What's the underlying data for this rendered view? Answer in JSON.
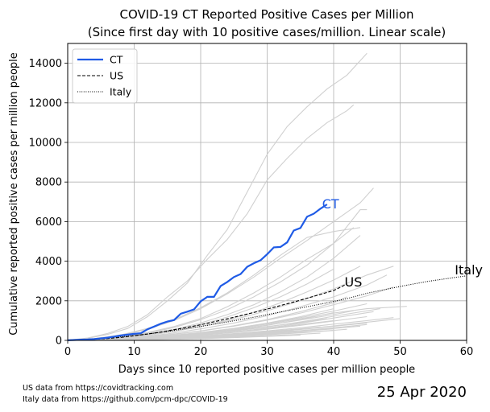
{
  "chart_data": {
    "type": "line",
    "title": "COVID-19 CT Reported Positive Cases per Million",
    "subtitle": "(Since first day with 10 positive cases/million. Linear scale)",
    "xlabel": "Days since 10 reported positive cases per million people",
    "ylabel": "Cumulative reported positive cases per million people",
    "xlim": [
      0,
      60
    ],
    "ylim": [
      0,
      15000
    ],
    "xticks": [
      0,
      10,
      20,
      30,
      40,
      50,
      60
    ],
    "yticks": [
      0,
      2000,
      4000,
      6000,
      8000,
      10000,
      12000,
      14000
    ],
    "grid": true,
    "legend_position": "top-left",
    "series": [
      {
        "name": "CT",
        "color": "#1f5be6",
        "style": "solid-bold",
        "end_label": "CT",
        "x": [
          0,
          1,
          2,
          3,
          4,
          5,
          6,
          7,
          8,
          9,
          10,
          11,
          12,
          13,
          14,
          15,
          16,
          17,
          18,
          19,
          20,
          21,
          22,
          23,
          24,
          25,
          26,
          27,
          28,
          29,
          30,
          31,
          32,
          33,
          34,
          35,
          36,
          37,
          38,
          39
        ],
        "y": [
          10,
          20,
          35,
          50,
          70,
          100,
          140,
          190,
          250,
          290,
          330,
          360,
          560,
          700,
          840,
          950,
          1030,
          1350,
          1450,
          1570,
          1970,
          2200,
          2200,
          2750,
          2950,
          3200,
          3350,
          3720,
          3900,
          4050,
          4350,
          4700,
          4720,
          4950,
          5550,
          5680,
          6250,
          6400,
          6650,
          6870
        ]
      },
      {
        "name": "US",
        "color": "#000000",
        "style": "dashed",
        "end_label": "US",
        "x": [
          0,
          2,
          4,
          6,
          8,
          10,
          12,
          14,
          16,
          18,
          20,
          22,
          24,
          26,
          28,
          30,
          32,
          34,
          36,
          38,
          40,
          42
        ],
        "y": [
          10,
          25,
          55,
          95,
          150,
          230,
          320,
          420,
          540,
          660,
          790,
          940,
          1090,
          1250,
          1410,
          1580,
          1760,
          1940,
          2130,
          2320,
          2520,
          2850
        ]
      },
      {
        "name": "Italy",
        "color": "#000000",
        "style": "dotted",
        "end_label": "Italy",
        "x": [
          0,
          3,
          6,
          9,
          12,
          15,
          18,
          21,
          24,
          27,
          30,
          33,
          36,
          39,
          42,
          45,
          48,
          51,
          54,
          57,
          60
        ],
        "y": [
          10,
          50,
          120,
          210,
          320,
          450,
          600,
          760,
          930,
          1110,
          1300,
          1500,
          1700,
          1900,
          2110,
          2380,
          2590,
          2790,
          2970,
          3120,
          3260
        ]
      }
    ],
    "background_series": [
      {
        "x": [
          0,
          3,
          6,
          9,
          12,
          15,
          18,
          21,
          24,
          27,
          30,
          33,
          36,
          39,
          42,
          45
        ],
        "y": [
          10,
          100,
          300,
          600,
          1200,
          2000,
          2900,
          4300,
          5600,
          7500,
          9400,
          10800,
          11800,
          12700,
          13400,
          14500
        ]
      },
      {
        "x": [
          0,
          3,
          6,
          9,
          12,
          15,
          18,
          21,
          24,
          27,
          30,
          33,
          36,
          39,
          42,
          43
        ],
        "y": [
          10,
          120,
          350,
          700,
          1300,
          2200,
          3000,
          4100,
          5100,
          6400,
          8100,
          9200,
          10200,
          11000,
          11600,
          11900
        ]
      },
      {
        "x": [
          0,
          4,
          8,
          12,
          16,
          20,
          24,
          28,
          32,
          36,
          40,
          44,
          46
        ],
        "y": [
          10,
          80,
          250,
          560,
          1000,
          1600,
          2350,
          3200,
          4150,
          5050,
          6000,
          6950,
          7700
        ]
      },
      {
        "x": [
          0,
          4,
          8,
          12,
          16,
          20,
          24,
          28,
          32,
          36,
          40,
          44
        ],
        "y": [
          10,
          90,
          280,
          600,
          1050,
          1650,
          2400,
          3300,
          4300,
          5200,
          5500,
          5700
        ]
      },
      {
        "x": [
          0,
          4,
          8,
          12,
          16,
          20,
          24,
          28,
          32,
          36,
          40,
          44,
          45
        ],
        "y": [
          10,
          60,
          180,
          400,
          700,
          1100,
          1700,
          2400,
          3200,
          4100,
          4900,
          6600,
          6600
        ]
      },
      {
        "x": [
          0,
          4,
          8,
          12,
          16,
          20,
          24,
          28,
          32,
          36,
          40,
          43
        ],
        "y": [
          10,
          60,
          170,
          360,
          650,
          1050,
          1550,
          2200,
          2950,
          3800,
          4900,
          5700
        ]
      },
      {
        "x": [
          0,
          4,
          8,
          12,
          16,
          20,
          24,
          28,
          32,
          36,
          40,
          44
        ],
        "y": [
          10,
          50,
          150,
          320,
          560,
          880,
          1300,
          1800,
          2450,
          3200,
          4150,
          5300
        ]
      },
      {
        "x": [
          0,
          4,
          8,
          12,
          16,
          20,
          24,
          28,
          32,
          36,
          40
        ],
        "y": [
          10,
          50,
          140,
          300,
          520,
          800,
          1180,
          1650,
          2200,
          2850,
          3600
        ]
      },
      {
        "x": [
          0,
          4,
          8,
          12,
          16,
          20,
          24,
          28,
          32,
          36,
          40,
          44
        ],
        "y": [
          10,
          40,
          120,
          260,
          450,
          700,
          1030,
          1420,
          1900,
          2450,
          3050,
          3750
        ]
      },
      {
        "x": [
          0,
          5,
          10,
          15,
          20,
          25,
          30,
          35,
          40,
          45,
          49
        ],
        "y": [
          10,
          60,
          180,
          400,
          700,
          1050,
          1500,
          2000,
          2600,
          3300,
          3750
        ]
      },
      {
        "x": [
          0,
          5,
          10,
          15,
          20,
          25,
          30,
          35,
          40,
          45,
          48
        ],
        "y": [
          10,
          50,
          150,
          330,
          580,
          880,
          1250,
          1700,
          2200,
          2800,
          3300
        ]
      },
      {
        "x": [
          0,
          5,
          10,
          15,
          20,
          25,
          30,
          35,
          40,
          45,
          49
        ],
        "y": [
          10,
          40,
          120,
          270,
          470,
          720,
          1020,
          1380,
          1800,
          2250,
          2700
        ]
      },
      {
        "x": [
          0,
          5,
          10,
          15,
          20,
          25,
          30,
          35,
          40,
          42
        ],
        "y": [
          10,
          40,
          130,
          280,
          480,
          740,
          1050,
          1450,
          1900,
          2200
        ]
      },
      {
        "x": [
          0,
          5,
          10,
          15,
          20,
          25,
          30,
          35,
          40,
          45,
          51
        ],
        "y": [
          10,
          30,
          100,
          220,
          380,
          580,
          820,
          1100,
          1380,
          1600,
          1720
        ]
      },
      {
        "x": [
          0,
          5,
          10,
          15,
          20,
          25,
          30,
          35,
          40,
          43
        ],
        "y": [
          10,
          30,
          90,
          200,
          350,
          540,
          770,
          1030,
          1300,
          1500
        ]
      },
      {
        "x": [
          0,
          5,
          10,
          15,
          20,
          25,
          30,
          35,
          39
        ],
        "y": [
          10,
          30,
          90,
          190,
          330,
          500,
          700,
          900,
          1100
        ]
      },
      {
        "x": [
          0,
          5,
          10,
          15,
          20,
          25,
          30,
          35,
          40
        ],
        "y": [
          10,
          25,
          70,
          150,
          270,
          420,
          600,
          800,
          1000
        ]
      },
      {
        "x": [
          0,
          5,
          10,
          15,
          20,
          25,
          30,
          35,
          40,
          45
        ],
        "y": [
          10,
          25,
          70,
          150,
          260,
          400,
          560,
          760,
          980,
          1200
        ]
      },
      {
        "x": [
          0,
          5,
          10,
          15,
          20,
          25,
          30,
          35,
          40,
          45,
          49
        ],
        "y": [
          10,
          20,
          60,
          130,
          220,
          340,
          480,
          640,
          820,
          1000,
          1150
        ]
      },
      {
        "x": [
          0,
          5,
          10,
          15,
          20,
          25,
          30,
          35,
          38
        ],
        "y": [
          10,
          25,
          65,
          130,
          220,
          330,
          450,
          580,
          680
        ]
      },
      {
        "x": [
          0,
          5,
          10,
          15,
          20,
          25,
          30,
          35,
          40
        ],
        "y": [
          10,
          20,
          50,
          100,
          170,
          250,
          350,
          460,
          580
        ]
      },
      {
        "x": [
          0,
          5,
          10,
          15,
          20,
          25,
          30,
          35,
          40,
          44
        ],
        "y": [
          10,
          20,
          45,
          90,
          150,
          230,
          330,
          450,
          600,
          720
        ]
      },
      {
        "x": [
          0,
          5,
          10,
          15,
          20,
          25,
          30,
          34
        ],
        "y": [
          10,
          20,
          50,
          100,
          170,
          260,
          380,
          480
        ]
      },
      {
        "x": [
          0,
          5,
          10,
          15,
          20,
          25,
          30,
          35,
          40
        ],
        "y": [
          10,
          15,
          35,
          70,
          120,
          190,
          280,
          380,
          500
        ]
      },
      {
        "x": [
          0,
          5,
          10,
          15,
          20,
          25,
          30,
          35,
          40,
          45
        ],
        "y": [
          10,
          20,
          55,
          110,
          190,
          290,
          410,
          550,
          710,
          880
        ]
      },
      {
        "x": [
          0,
          5,
          10,
          15,
          20,
          25,
          30,
          35,
          40,
          42
        ],
        "y": [
          10,
          20,
          40,
          80,
          140,
          210,
          300,
          400,
          510,
          560
        ]
      },
      {
        "x": [
          0,
          5,
          10,
          15,
          20,
          25,
          30,
          35,
          38
        ],
        "y": [
          10,
          15,
          35,
          70,
          110,
          160,
          230,
          310,
          360
        ]
      },
      {
        "x": [
          0,
          5,
          10,
          15,
          20,
          25,
          30,
          35
        ],
        "y": [
          10,
          15,
          30,
          55,
          90,
          140,
          200,
          270
        ]
      },
      {
        "x": [
          0,
          5,
          10,
          15,
          20,
          25,
          30,
          33
        ],
        "y": [
          10,
          15,
          30,
          60,
          100,
          150,
          220,
          260
        ]
      },
      {
        "x": [
          0,
          5,
          10,
          15,
          20,
          25,
          30,
          35,
          40,
          46
        ],
        "y": [
          10,
          25,
          70,
          150,
          270,
          420,
          620,
          860,
          1130,
          1450
        ]
      },
      {
        "x": [
          0,
          5,
          10,
          15,
          20,
          25,
          30,
          35,
          40,
          47
        ],
        "y": [
          10,
          30,
          80,
          170,
          300,
          470,
          680,
          930,
          1220,
          1600
        ]
      },
      {
        "x": [
          0,
          5,
          10,
          15,
          20,
          25,
          30,
          35,
          40,
          45,
          50
        ],
        "y": [
          10,
          20,
          50,
          110,
          190,
          290,
          410,
          560,
          730,
          920,
          1100
        ]
      },
      {
        "x": [
          0,
          5,
          10,
          15,
          20,
          25,
          30,
          35,
          40,
          45
        ],
        "y": [
          10,
          15,
          40,
          90,
          160,
          250,
          360,
          490,
          640,
          800
        ]
      },
      {
        "x": [
          0,
          5,
          10,
          15,
          20,
          25,
          30,
          35,
          40
        ],
        "y": [
          10,
          30,
          90,
          190,
          330,
          520,
          760,
          1050,
          1400
        ]
      },
      {
        "x": [
          0,
          5,
          10,
          15,
          20,
          25,
          30,
          35,
          40
        ],
        "y": [
          10,
          35,
          100,
          220,
          380,
          600,
          870,
          1200,
          1600
        ]
      },
      {
        "x": [
          0,
          5,
          10,
          15,
          20,
          25,
          30,
          35,
          40,
          45
        ],
        "y": [
          10,
          40,
          110,
          230,
          400,
          610,
          860,
          1150,
          1480,
          1850
        ]
      }
    ]
  },
  "footnote": {
    "line1": "US data from https://covidtracking.com",
    "line2": "Italy data from https://github.com/pcm-dpc/COVID-19"
  },
  "date_label": "25 Apr 2020"
}
